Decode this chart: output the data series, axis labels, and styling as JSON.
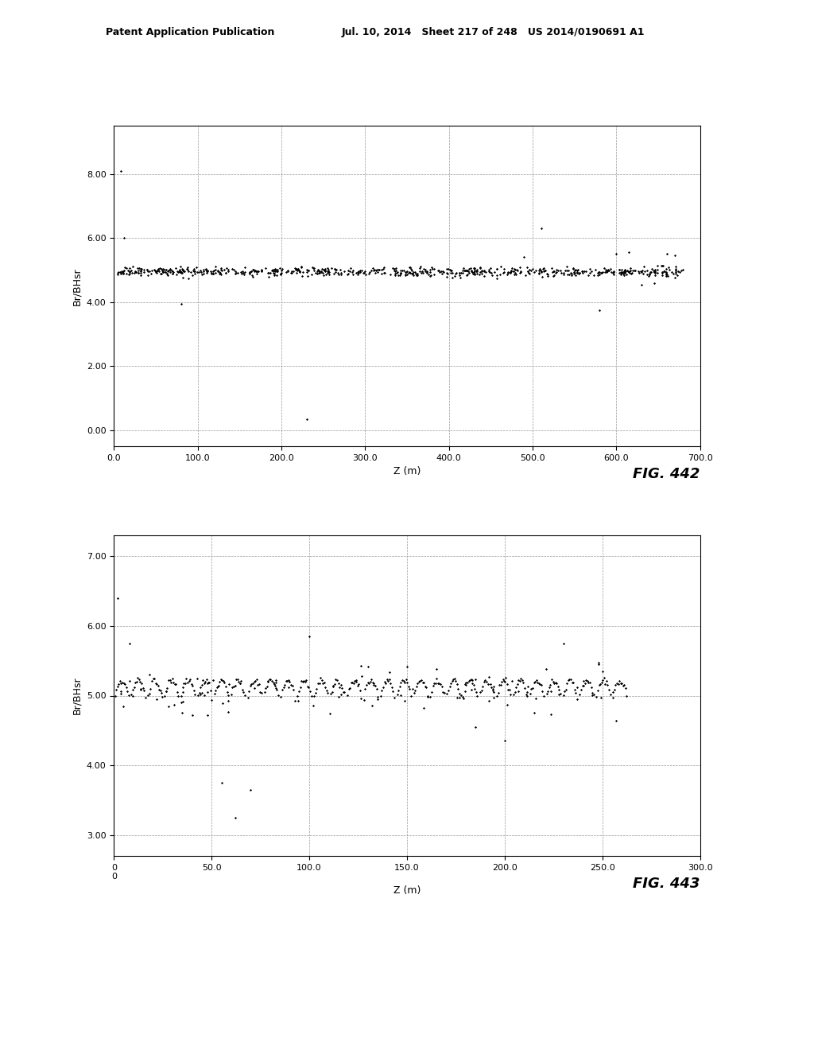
{
  "fig442": {
    "xlabel": "Z (m)",
    "ylabel": "Br/BHsr",
    "xlim": [
      0,
      700
    ],
    "ylim": [
      -0.5,
      9.5
    ],
    "xticks": [
      0.0,
      100.0,
      200.0,
      300.0,
      400.0,
      500.0,
      600.0,
      700.0
    ],
    "xticklabels": [
      "0.0",
      "100.0",
      "200.0",
      "300.0",
      "400.0",
      "500.0",
      "600.0",
      "700.0"
    ],
    "yticks": [
      0.0,
      2.0,
      4.0,
      6.0,
      8.0
    ],
    "yticklabels": [
      "0.00",
      "2.00",
      "4.00",
      "6.00",
      "8.00"
    ],
    "fig_label": "FIG. 442"
  },
  "fig443": {
    "xlabel": "Z (m)",
    "ylabel": "Br/BHsr",
    "xlim": [
      0,
      300
    ],
    "ylim": [
      2.7,
      7.3
    ],
    "xticks": [
      0,
      50.0,
      100.0,
      150.0,
      200.0,
      250.0,
      300.0
    ],
    "xticklabels": [
      "0\n0",
      "50.0",
      "100.0",
      "150.0",
      "200.0",
      "250.0",
      "300.0"
    ],
    "yticks": [
      3.0,
      4.0,
      5.0,
      6.0,
      7.0
    ],
    "yticklabels": [
      "3.00",
      "4.00",
      "5.00",
      "6.00",
      "7.00"
    ],
    "fig_label": "FIG. 443"
  },
  "header_left": "Patent Application Publication",
  "header_mid": "Jul. 10, 2014   Sheet 217 of 248   US 2014/0190691 A1",
  "background_color": "#ffffff",
  "dot_color": "#000000",
  "grid_color": "#999999",
  "axis_color": "#000000",
  "font_size_label": 9,
  "font_size_tick": 8,
  "font_size_header": 9,
  "font_size_figlabel": 13
}
